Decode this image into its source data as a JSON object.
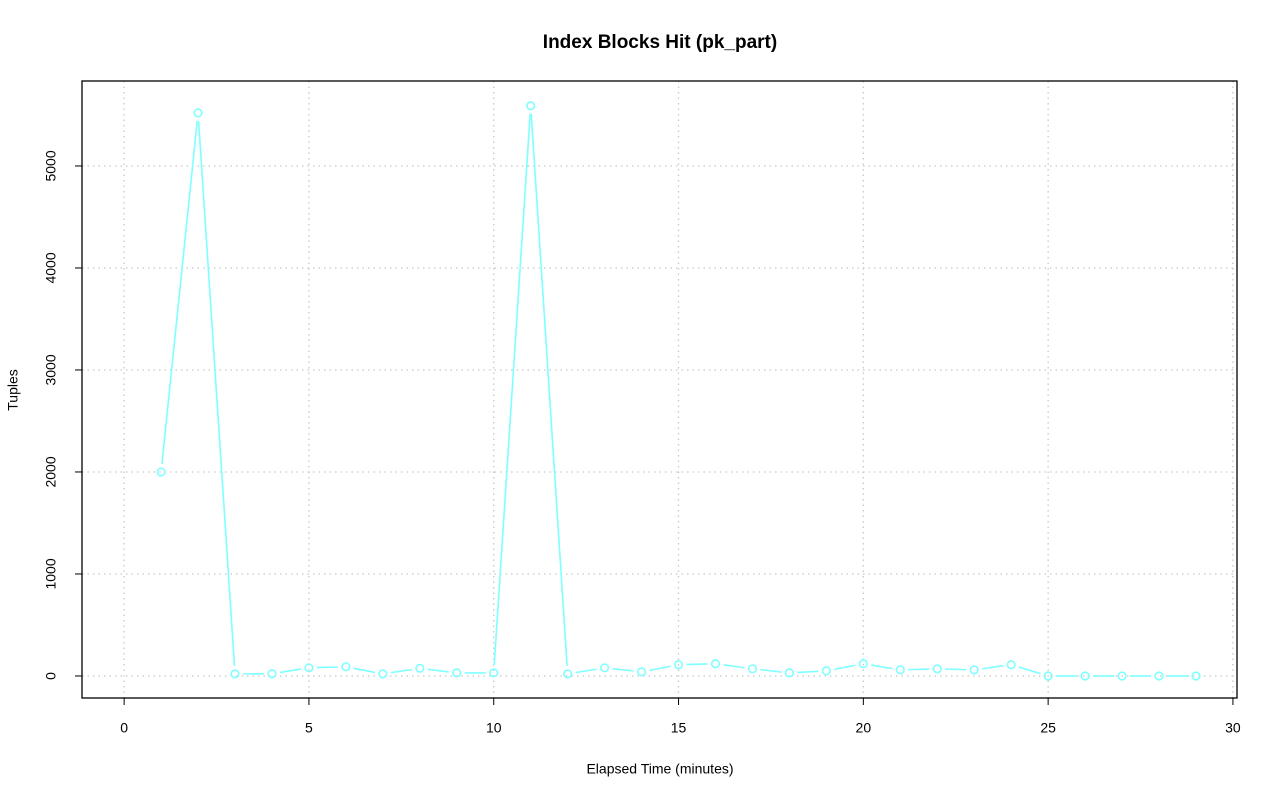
{
  "chart_data": {
    "type": "line",
    "title": "Index Blocks Hit (pk_part)",
    "x_label": "Elapsed Time (minutes)",
    "y_label": "Tuples",
    "x": [
      1,
      2,
      3,
      4,
      5,
      6,
      7,
      8,
      9,
      10,
      11,
      12,
      13,
      14,
      15,
      16,
      17,
      18,
      19,
      20,
      21,
      22,
      23,
      24,
      25,
      26,
      27,
      28,
      29
    ],
    "values": [
      2000,
      5520,
      20,
      22,
      80,
      90,
      20,
      75,
      30,
      30,
      5590,
      20,
      80,
      40,
      110,
      120,
      70,
      30,
      50,
      120,
      60,
      70,
      60,
      110,
      0,
      0,
      0,
      0,
      0
    ],
    "color": "#7fffff",
    "xlim": [
      -1.14,
      30.11
    ],
    "xticks": [
      0,
      5,
      10,
      15,
      20,
      25,
      30
    ],
    "ylim": [
      -216,
      5833
    ],
    "yticks": [
      0,
      1000,
      2000,
      3000,
      4000,
      5000
    ],
    "grid": true
  }
}
